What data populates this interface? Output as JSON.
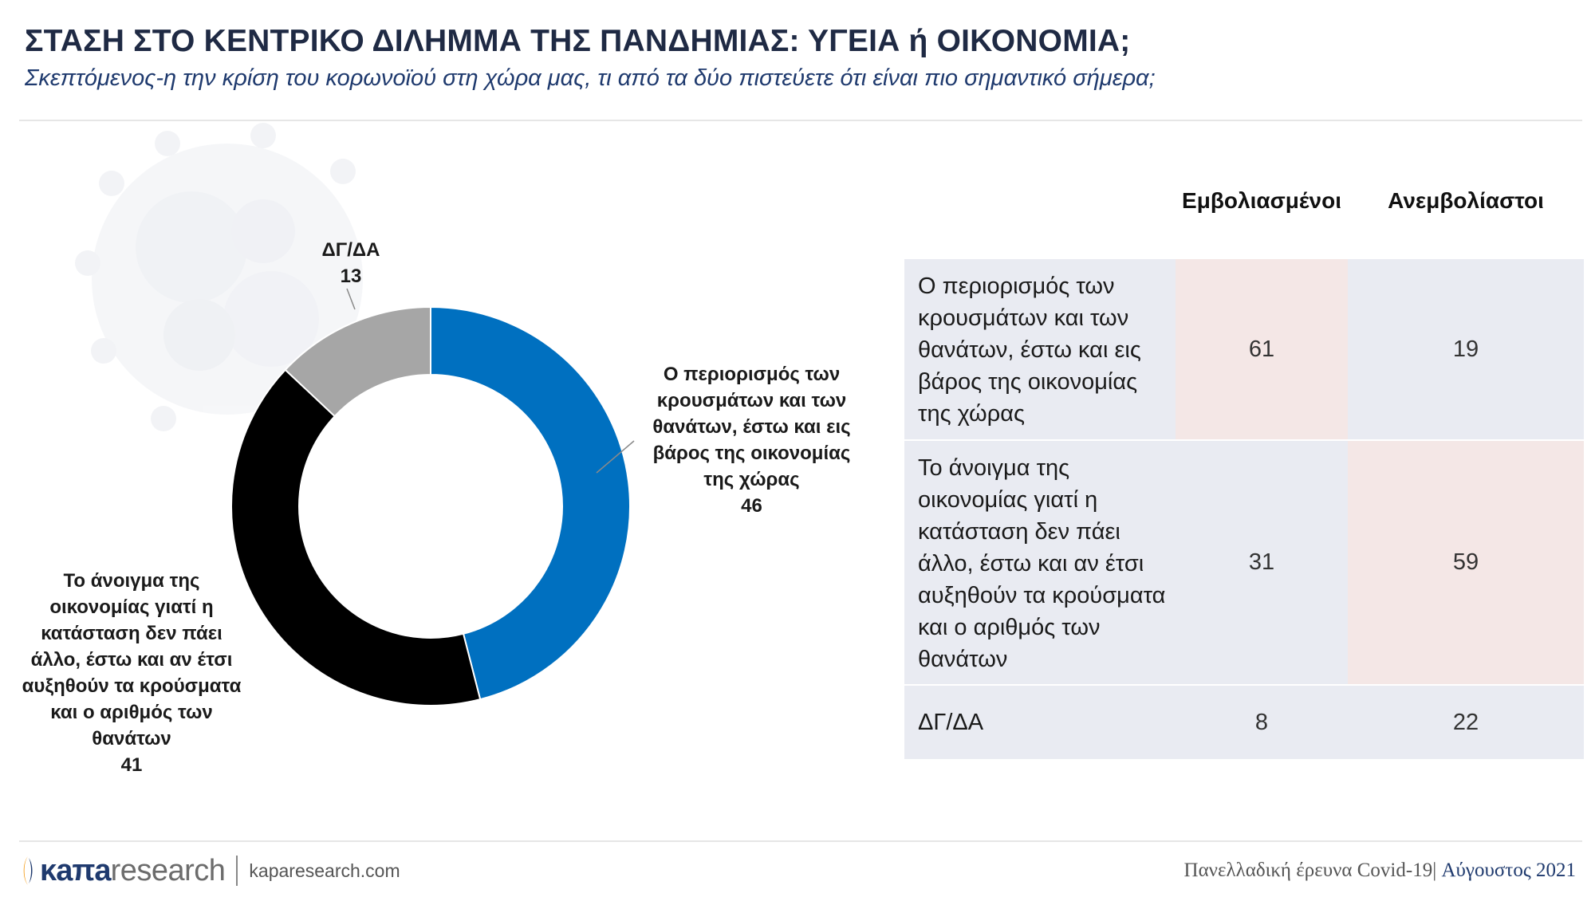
{
  "header": {
    "title": "ΣΤΑΣΗ ΣΤΟ ΚΕΝΤΡΙΚΟ ΔΙΛΗΜΜΑ ΤΗΣ ΠΑΝΔΗΜΙΑΣ: ΥΓΕΙΑ ή ΟΙΚΟΝΟΜΙΑ;",
    "subtitle": "Σκεπτόμενος-η την κρίση του κορωνοϊού στη χώρα μας, τι από τα δύο πιστεύετε ότι είναι πιο σημαντικό σήμερα;"
  },
  "chart_data": {
    "type": "pie",
    "donut": true,
    "legend": "none",
    "series": [
      {
        "values": [
          46,
          41,
          13
        ],
        "labels": [
          "Ο περιορισμός των κρουσμάτων και των θανάτων, έστω και εις βάρος της οικονομίας της χώρας",
          "Το άνοιγμα της οικονομίας γιατί η κατάσταση δεν πάει άλλο, έστω και αν έτσι αυξηθούν τα κρούσματα και ο αριθμός των θανάτων",
          "ΔΓ/ΔΑ"
        ],
        "colors": [
          "#0070c0",
          "#000000",
          "#a6a6a6"
        ]
      }
    ]
  },
  "table": {
    "columns": [
      "Εμβολιασμένοι",
      "Ανεμβολίαστοι"
    ],
    "rows": [
      {
        "label": "Ο περιορισμός των κρουσμάτων και των θανάτων, έστω και εις βάρος της οικονομίας της χώρας",
        "values": [
          "61",
          "19"
        ]
      },
      {
        "label": "Το άνοιγμα της οικονομίας γιατί η κατάσταση δεν πάει άλλο, έστω και αν έτσι αυξηθούν τα κρούσματα και ο αριθμός των θανάτων",
        "values": [
          "31",
          "59"
        ]
      },
      {
        "label": "ΔΓ/ΔΑ",
        "values": [
          "8",
          "22"
        ]
      }
    ]
  },
  "footer": {
    "logo_kapa": "κaπa",
    "logo_research": "research",
    "url": "kaparesearch.com",
    "survey": "Πανελλαδική έρευνα Covid-19",
    "date": "Αύγουστος 2021"
  },
  "colors": {
    "accent_blue": "#0070c0",
    "title_navy": "#1f2a44",
    "table_bg": "#e9ebf2",
    "table_highlight": "#f4e7e6",
    "logo_orange": "#f39200"
  }
}
